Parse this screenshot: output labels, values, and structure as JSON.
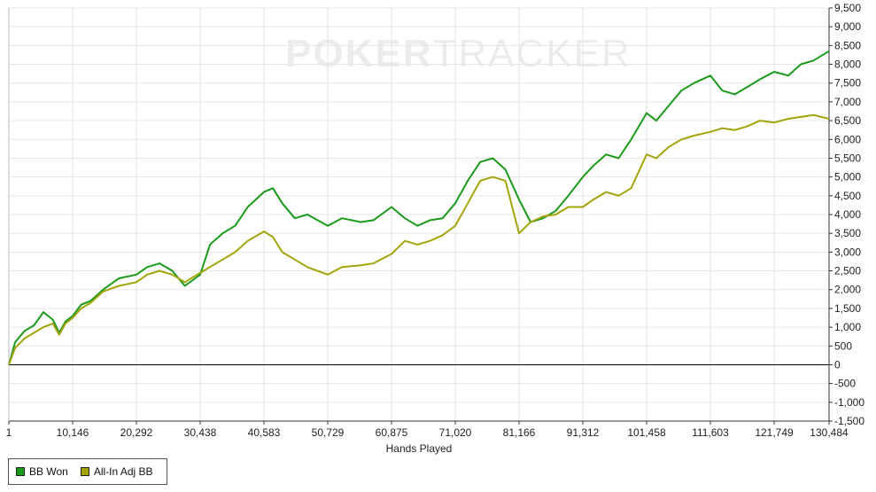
{
  "watermark": {
    "part1": "POKER",
    "part2": "TRACKER"
  },
  "chart_data": {
    "type": "line",
    "title": "",
    "xlabel": "Hands Played",
    "ylabel": "",
    "xlim": [
      1,
      130484
    ],
    "ylim": [
      -1500,
      9500
    ],
    "x_ticks": [
      1,
      10146,
      20292,
      30438,
      40583,
      50729,
      60875,
      71020,
      81166,
      91312,
      101458,
      111603,
      121749,
      130484
    ],
    "x_tick_labels": [
      "1",
      "10,146",
      "20,292",
      "30,438",
      "40,583",
      "50,729",
      "60,875",
      "71,020",
      "81,166",
      "91,312",
      "101,458",
      "111,603",
      "121,749",
      "130,484"
    ],
    "y_ticks": [
      -1500,
      -1000,
      -500,
      0,
      500,
      1000,
      1500,
      2000,
      2500,
      3000,
      3500,
      4000,
      4500,
      5000,
      5500,
      6000,
      6500,
      7000,
      7500,
      8000,
      8500,
      9000,
      9500
    ],
    "y_tick_labels": [
      "-1,500",
      "-1,000",
      "-500",
      "0",
      "500",
      "1,000",
      "1,500",
      "2,000",
      "2,500",
      "3,000",
      "3,500",
      "4,000",
      "4,500",
      "5,000",
      "5,500",
      "6,000",
      "6,500",
      "7,000",
      "7,500",
      "8,000",
      "8,500",
      "9,000",
      "9,500"
    ],
    "grid": true,
    "legend_position": "bottom-left",
    "series": [
      {
        "name": "BB Won",
        "color": "#1a9a1a",
        "x": [
          1,
          1000,
          2500,
          4000,
          5500,
          7000,
          8000,
          9000,
          10146,
          11500,
          13000,
          15000,
          17500,
          20292,
          22000,
          24000,
          26000,
          28000,
          30438,
          32000,
          34000,
          36000,
          38000,
          40583,
          42000,
          43500,
          45500,
          47500,
          50729,
          53000,
          56000,
          58000,
          60875,
          63000,
          65000,
          67000,
          69000,
          71020,
          73000,
          75000,
          77000,
          79000,
          81166,
          83000,
          85000,
          87000,
          89000,
          91312,
          93000,
          95000,
          97000,
          99000,
          101458,
          103000,
          105000,
          107000,
          109000,
          111603,
          113500,
          115500,
          117500,
          119500,
          121749,
          124000,
          126000,
          128000,
          130484
        ],
        "values": [
          0,
          600,
          900,
          1050,
          1400,
          1200,
          850,
          1150,
          1300,
          1600,
          1700,
          2000,
          2300,
          2400,
          2600,
          2700,
          2500,
          2100,
          2400,
          3200,
          3500,
          3700,
          4200,
          4600,
          4700,
          4300,
          3900,
          4000,
          3700,
          3900,
          3800,
          3850,
          4200,
          3900,
          3700,
          3850,
          3900,
          4300,
          4900,
          5400,
          5500,
          5200,
          4400,
          3800,
          3900,
          4100,
          4500,
          5000,
          5300,
          5600,
          5500,
          6000,
          6700,
          6500,
          6900,
          7300,
          7500,
          7700,
          7300,
          7200,
          7400,
          7600,
          7800,
          7700,
          8000,
          8100,
          8350
        ]
      },
      {
        "name": "All-In Adj BB",
        "color": "#a4a40a",
        "x": [
          1,
          1000,
          2500,
          4000,
          5500,
          7000,
          8000,
          9000,
          10146,
          11500,
          13000,
          15000,
          17500,
          20292,
          22000,
          24000,
          26000,
          28000,
          30438,
          32000,
          34000,
          36000,
          38000,
          40583,
          42000,
          43500,
          45500,
          47500,
          50729,
          53000,
          56000,
          58000,
          60875,
          63000,
          65000,
          67000,
          69000,
          71020,
          73000,
          75000,
          77000,
          79000,
          81166,
          83000,
          85000,
          87000,
          89000,
          91312,
          93000,
          95000,
          97000,
          99000,
          101458,
          103000,
          105000,
          107000,
          109000,
          111603,
          113500,
          115500,
          117500,
          119500,
          121749,
          124000,
          126000,
          128000,
          130484
        ],
        "values": [
          0,
          450,
          700,
          850,
          1000,
          1100,
          800,
          1100,
          1250,
          1500,
          1650,
          1950,
          2100,
          2200,
          2400,
          2500,
          2400,
          2200,
          2450,
          2600,
          2800,
          3000,
          3300,
          3550,
          3400,
          3000,
          2800,
          2600,
          2400,
          2600,
          2650,
          2700,
          2950,
          3300,
          3200,
          3300,
          3450,
          3700,
          4300,
          4900,
          5000,
          4900,
          3500,
          3800,
          3950,
          4000,
          4200,
          4200,
          4400,
          4600,
          4500,
          4700,
          5600,
          5500,
          5800,
          6000,
          6100,
          6200,
          6300,
          6250,
          6350,
          6500,
          6450,
          6550,
          6600,
          6650,
          6550
        ]
      }
    ]
  }
}
